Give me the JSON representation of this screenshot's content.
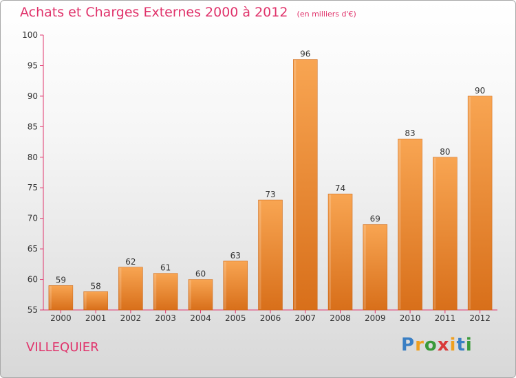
{
  "header": {
    "title": "Achats et Charges Externes 2000 à 2012",
    "subtitle": "(en milliers d'€)"
  },
  "footer": {
    "town": "VILLEQUIER",
    "logo_letters": [
      {
        "char": "P",
        "color": "#3a7fc4"
      },
      {
        "char": "r",
        "color": "#f0a020"
      },
      {
        "char": "o",
        "color": "#3a9a3a"
      },
      {
        "char": "x",
        "color": "#d93a3a"
      },
      {
        "char": "i",
        "color": "#f0a020"
      },
      {
        "char": "t",
        "color": "#3a7fc4"
      },
      {
        "char": "i",
        "color": "#3a9a3a"
      }
    ]
  },
  "chart_data": {
    "type": "bar",
    "title": "Achats et Charges Externes 2000 à 2012",
    "subtitle": "(en milliers d'€)",
    "categories": [
      "2000",
      "2001",
      "2002",
      "2003",
      "2004",
      "2005",
      "2006",
      "2007",
      "2008",
      "2009",
      "2010",
      "2011",
      "2012"
    ],
    "values": [
      59,
      58,
      62,
      61,
      60,
      63,
      73,
      96,
      74,
      69,
      83,
      80,
      90
    ],
    "ylim": [
      55,
      100
    ],
    "yticks": [
      55,
      60,
      65,
      70,
      75,
      80,
      85,
      90,
      95,
      100
    ],
    "grid": false,
    "bar_color_top": "#f8a552",
    "bar_color_bottom": "#d86f1a",
    "axis_color": "#e0336b"
  }
}
